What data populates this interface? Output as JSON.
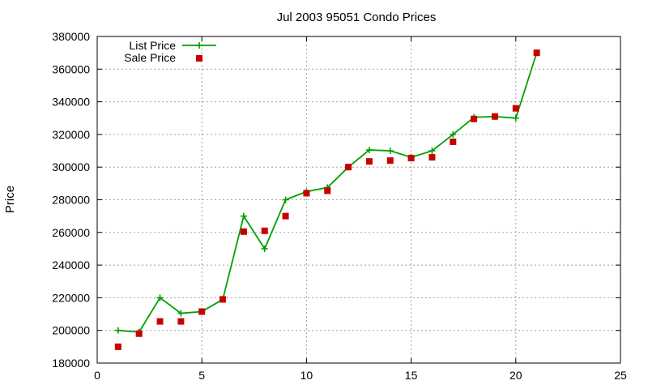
{
  "chart_data": {
    "type": "scatter",
    "title": "Jul 2003 95051 Condo Prices",
    "xlabel": "",
    "ylabel": "Price",
    "xlim": [
      0,
      25
    ],
    "ylim": [
      180000,
      380000
    ],
    "x_ticks": [
      "0",
      "5",
      "10",
      "15",
      "20",
      "25"
    ],
    "y_ticks": [
      "180000",
      "200000",
      "220000",
      "240000",
      "260000",
      "280000",
      "300000",
      "320000",
      "340000",
      "360000",
      "380000"
    ],
    "grid": true,
    "legend_position": "top-left",
    "series": [
      {
        "name": "List Price",
        "style": "line-with-plus-markers",
        "color": "#00a000",
        "x": [
          1,
          2,
          3,
          4,
          5,
          6,
          7,
          8,
          9,
          10,
          11,
          12,
          13,
          14,
          15,
          16,
          17,
          18,
          19,
          20,
          21
        ],
        "y": [
          200000,
          199000,
          220000,
          210500,
          211500,
          219000,
          270000,
          250000,
          280000,
          285000,
          287500,
          300000,
          310500,
          310000,
          306000,
          310000,
          320000,
          330500,
          331000,
          330000,
          370000
        ]
      },
      {
        "name": "Sale Price",
        "style": "square-markers",
        "color": "#c80000",
        "x": [
          1,
          2,
          3,
          4,
          5,
          6,
          7,
          8,
          9,
          10,
          11,
          12,
          13,
          14,
          15,
          16,
          17,
          18,
          19,
          20,
          21
        ],
        "y": [
          190000,
          198000,
          205500,
          205500,
          211500,
          219000,
          260500,
          261000,
          270000,
          284000,
          285500,
          300000,
          303500,
          304000,
          305500,
          306000,
          315500,
          329500,
          331000,
          336000,
          370000
        ]
      }
    ]
  }
}
